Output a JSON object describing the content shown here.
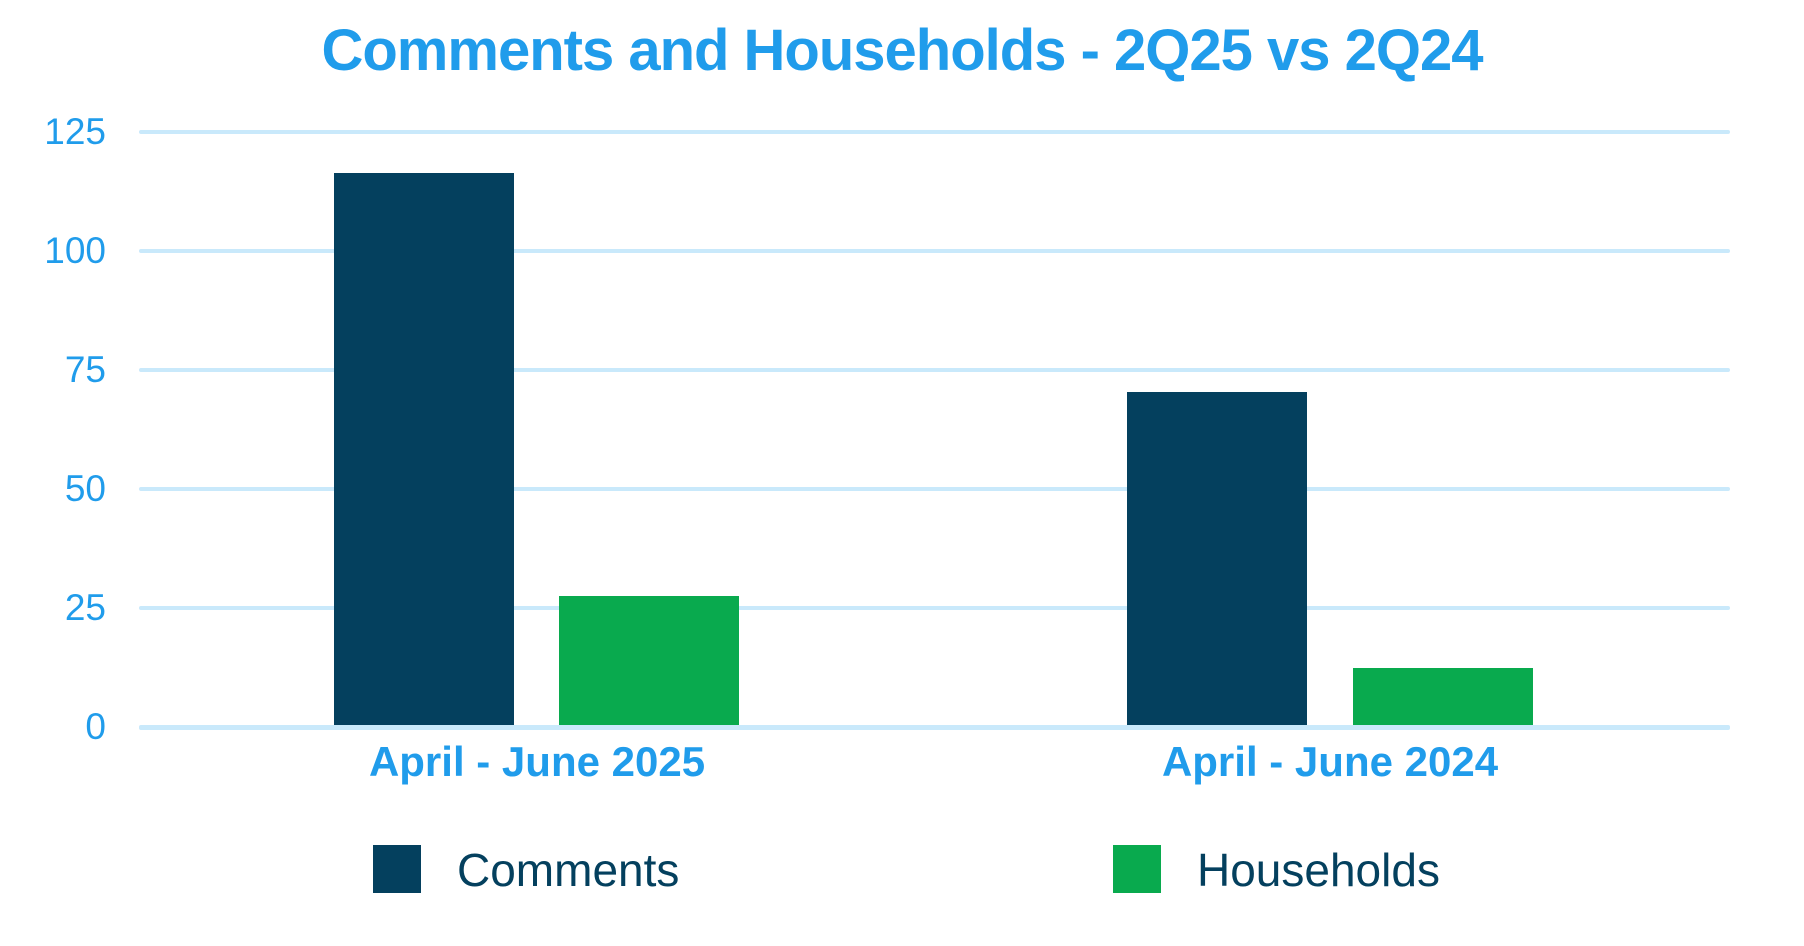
{
  "title": "Comments and Households - 2Q25 vs 2Q24",
  "colors": {
    "accent_blue": "#209ceb",
    "navy": "#04405e",
    "green": "#09aa4e",
    "gridline": "#c9e9fb",
    "legend_text": "#04405e",
    "background": "#ffffff"
  },
  "chart_data": {
    "type": "bar",
    "title": "Comments and Households - 2Q25 vs 2Q24",
    "categories": [
      "April - June 2025",
      "April - June 2024"
    ],
    "series": [
      {
        "name": "Comments",
        "color": "#04405e",
        "values": [
          116,
          70
        ]
      },
      {
        "name": "Households",
        "color": "#09aa4e",
        "values": [
          27,
          12
        ]
      }
    ],
    "ylim": [
      0,
      125
    ],
    "yticks": [
      0,
      25,
      50,
      75,
      100,
      125
    ],
    "grid": "horizontal",
    "legend_position": "bottom"
  },
  "legend": {
    "items": [
      {
        "label": "Comments",
        "color": "#04405e"
      },
      {
        "label": "Households",
        "color": "#09aa4e"
      }
    ]
  }
}
